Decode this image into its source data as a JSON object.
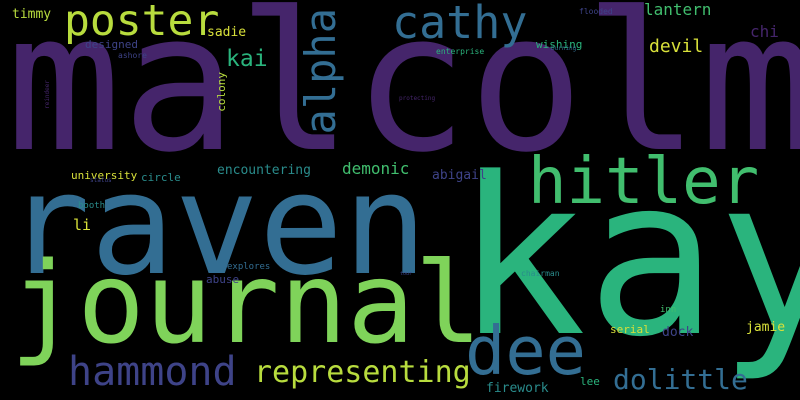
{
  "colors": {
    "background": "#000000",
    "purple_dark": "#45256b",
    "indigo": "#3e4388",
    "blue": "#336e93",
    "teal": "#2a8c8c",
    "green_teal": "#2ab47d",
    "green": "#41be6e",
    "lime": "#7fd35a",
    "yellow_green": "#b8dc3e",
    "yellow": "#d8e03a"
  },
  "words": [
    {
      "text": "malcolm",
      "color": "#45256b"
    },
    {
      "text": "raven",
      "color": "#336e93"
    },
    {
      "text": "kay",
      "color": "#2ab47d"
    },
    {
      "text": "journal",
      "color": "#7fd35a"
    },
    {
      "text": "hitler",
      "color": "#41be6e"
    },
    {
      "text": "poster",
      "color": "#b8dc3e"
    },
    {
      "text": "cathy",
      "color": "#336e93"
    },
    {
      "text": "alpha",
      "color": "#336e93"
    },
    {
      "text": "dee",
      "color": "#336e93"
    },
    {
      "text": "hammond",
      "color": "#3e4388"
    },
    {
      "text": "representing",
      "color": "#b8dc3e"
    },
    {
      "text": "dolittle",
      "color": "#336e93"
    },
    {
      "text": "kai",
      "color": "#2ab47d"
    },
    {
      "text": "lantern",
      "color": "#41be6e"
    },
    {
      "text": "devil",
      "color": "#d8e03a"
    },
    {
      "text": "chi",
      "color": "#45256b"
    },
    {
      "text": "timmy",
      "color": "#b8dc3e"
    },
    {
      "text": "designed",
      "color": "#3e4388"
    },
    {
      "text": "ashore",
      "color": "#3e4388"
    },
    {
      "text": "sadie",
      "color": "#d8e03a"
    },
    {
      "text": "colony",
      "color": "#b8dc3e"
    },
    {
      "text": "wishing",
      "color": "#2ab47d"
    },
    {
      "text": "flooded",
      "color": "#3e4388"
    },
    {
      "text": "enterprise",
      "color": "#2ab47d"
    },
    {
      "text": "burning",
      "color": "#336e93"
    },
    {
      "text": "reindeer",
      "color": "#45256b"
    },
    {
      "text": "protecting",
      "color": "#45256b"
    },
    {
      "text": "encountering",
      "color": "#2a8c8c"
    },
    {
      "text": "demonic",
      "color": "#41be6e"
    },
    {
      "text": "abigail",
      "color": "#3e4388"
    },
    {
      "text": "university",
      "color": "#d8e03a"
    },
    {
      "text": "circle",
      "color": "#2a8c8c"
    },
    {
      "text": "status",
      "color": "#3e4388"
    },
    {
      "text": "booth",
      "color": "#2a8c8c"
    },
    {
      "text": "li",
      "color": "#d8e03a"
    },
    {
      "text": "explores",
      "color": "#336e93"
    },
    {
      "text": "abuse",
      "color": "#3e4388"
    },
    {
      "text": "chairman",
      "color": "#2a8c8c"
    },
    {
      "text": "tour",
      "color": "#3e4388"
    },
    {
      "text": "inn",
      "color": "#41be6e"
    },
    {
      "text": "serial",
      "color": "#d8e03a"
    },
    {
      "text": "dock",
      "color": "#3e4388"
    },
    {
      "text": "jamie",
      "color": "#d8e03a"
    },
    {
      "text": "firework",
      "color": "#2a8c8c"
    },
    {
      "text": "lee",
      "color": "#2ab47d"
    }
  ]
}
